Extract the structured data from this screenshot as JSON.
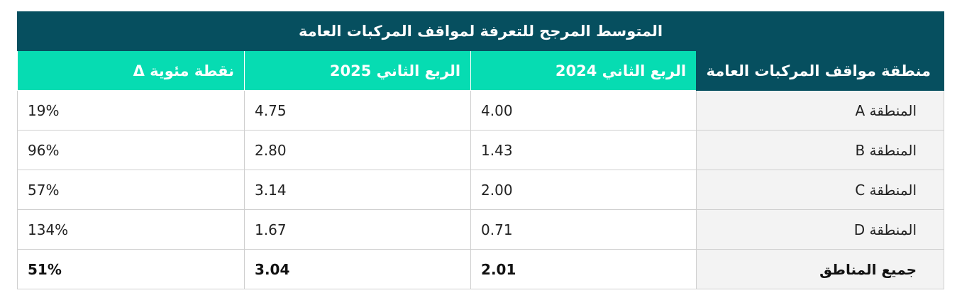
{
  "table": {
    "title": "المتوسط المرجح للتعرفة لمواقف المركبات العامة",
    "headers": [
      "منطقة مواقف المركبات العامة",
      "الربع الثاني 2024",
      "الربع الثاني 2025",
      "نقطة مئوية Δ"
    ],
    "rows": [
      {
        "region": "المنطقة A",
        "q2_2024": "4.00",
        "q2_2025": "4.75",
        "delta": "19%"
      },
      {
        "region": "المنطقة B",
        "q2_2024": "1.43",
        "q2_2025": "2.80",
        "delta": "96%"
      },
      {
        "region": "المنطقة C",
        "q2_2024": "2.00",
        "q2_2025": "3.14",
        "delta": "57%"
      },
      {
        "region": "المنطقة D",
        "q2_2024": "0.71",
        "q2_2025": "1.67",
        "delta": "134%"
      }
    ],
    "total": {
      "region": "جميع المناطق",
      "q2_2024": "2.01",
      "q2_2025": "3.04",
      "delta": "51%"
    },
    "colors": {
      "title_bg": "#064f5f",
      "header_accent": "#06dcb2",
      "region_cell_bg": "#f3f3f3",
      "border": "#cfcfcf"
    }
  }
}
